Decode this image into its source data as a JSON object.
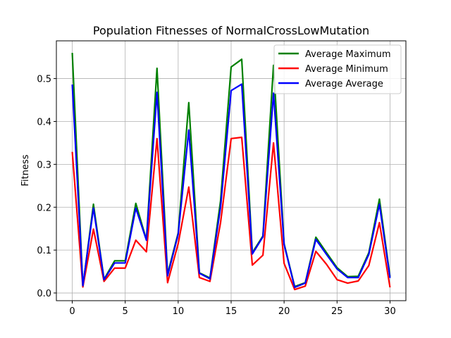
{
  "chart_data": {
    "type": "line",
    "title": "Population Fitnesses of NormalCrossLowMutation",
    "xlabel": "",
    "ylabel": "Fitness",
    "xlim": [
      -1.5,
      31.5
    ],
    "ylim": [
      -0.018,
      0.588
    ],
    "xticks": [
      0,
      5,
      10,
      15,
      20,
      25,
      30
    ],
    "yticks": [
      0.0,
      0.1,
      0.2,
      0.3,
      0.4,
      0.5
    ],
    "ytick_labels": [
      "0.0",
      "0.1",
      "0.2",
      "0.3",
      "0.4",
      "0.5"
    ],
    "grid": true,
    "legend_position": "upper right",
    "x": [
      0,
      1,
      2,
      3,
      4,
      5,
      6,
      7,
      8,
      9,
      10,
      11,
      12,
      13,
      14,
      15,
      16,
      17,
      18,
      19,
      20,
      21,
      22,
      23,
      24,
      25,
      26,
      27,
      28,
      29,
      30
    ],
    "series": [
      {
        "name": "Average Maximum",
        "color": "#008000",
        "values": [
          0.56,
          0.015,
          0.207,
          0.032,
          0.075,
          0.075,
          0.209,
          0.124,
          0.524,
          0.044,
          0.14,
          0.444,
          0.047,
          0.035,
          0.215,
          0.527,
          0.545,
          0.094,
          0.133,
          0.531,
          0.115,
          0.015,
          0.024,
          0.13,
          0.094,
          0.059,
          0.038,
          0.039,
          0.094,
          0.219,
          0.038
        ]
      },
      {
        "name": "Average Minimum",
        "color": "#ff0000",
        "values": [
          0.329,
          0.014,
          0.149,
          0.027,
          0.058,
          0.058,
          0.123,
          0.096,
          0.36,
          0.024,
          0.115,
          0.247,
          0.036,
          0.027,
          0.164,
          0.36,
          0.363,
          0.065,
          0.088,
          0.35,
          0.069,
          0.008,
          0.016,
          0.097,
          0.067,
          0.031,
          0.023,
          0.028,
          0.064,
          0.164,
          0.013
        ]
      },
      {
        "name": "Average Average",
        "color": "#0000ff",
        "values": [
          0.486,
          0.017,
          0.198,
          0.031,
          0.07,
          0.07,
          0.198,
          0.123,
          0.468,
          0.04,
          0.137,
          0.38,
          0.046,
          0.033,
          0.2,
          0.472,
          0.487,
          0.091,
          0.131,
          0.466,
          0.113,
          0.013,
          0.023,
          0.125,
          0.09,
          0.056,
          0.036,
          0.036,
          0.09,
          0.207,
          0.035
        ]
      }
    ]
  }
}
